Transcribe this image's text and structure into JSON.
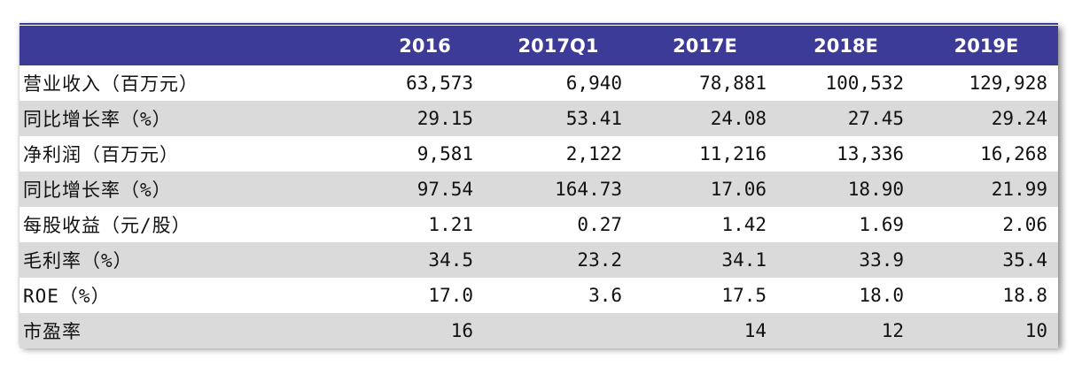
{
  "table": {
    "columns": [
      "",
      "2016",
      "2017Q1",
      "2017E",
      "2018E",
      "2019E"
    ],
    "rows": [
      {
        "label": "营业收入（百万元）",
        "values": [
          "63,573",
          "6,940",
          "78,881",
          "100,532",
          "129,928"
        ]
      },
      {
        "label": "同比增长率（%）",
        "values": [
          "29.15",
          "53.41",
          "24.08",
          "27.45",
          "29.24"
        ]
      },
      {
        "label": "净利润（百万元）",
        "values": [
          "9,581",
          "2,122",
          "11,216",
          "13,336",
          "16,268"
        ]
      },
      {
        "label": "同比增长率（%）",
        "values": [
          "97.54",
          "164.73",
          "17.06",
          "18.90",
          "21.99"
        ]
      },
      {
        "label": "每股收益（元/股）",
        "values": [
          "1.21",
          "0.27",
          "1.42",
          "1.69",
          "2.06"
        ]
      },
      {
        "label": "毛利率（%）",
        "values": [
          "34.5",
          "23.2",
          "34.1",
          "33.9",
          "35.4"
        ]
      },
      {
        "label": "ROE（%）",
        "values": [
          "17.0",
          "3.6",
          "17.5",
          "18.0",
          "18.8"
        ]
      },
      {
        "label": "市盈率",
        "values": [
          "16",
          "",
          "14",
          "12",
          "10"
        ]
      }
    ]
  },
  "colors": {
    "header_bg": "#3d3b98",
    "header_text": "#ffffff",
    "band_row": "#dadada"
  }
}
